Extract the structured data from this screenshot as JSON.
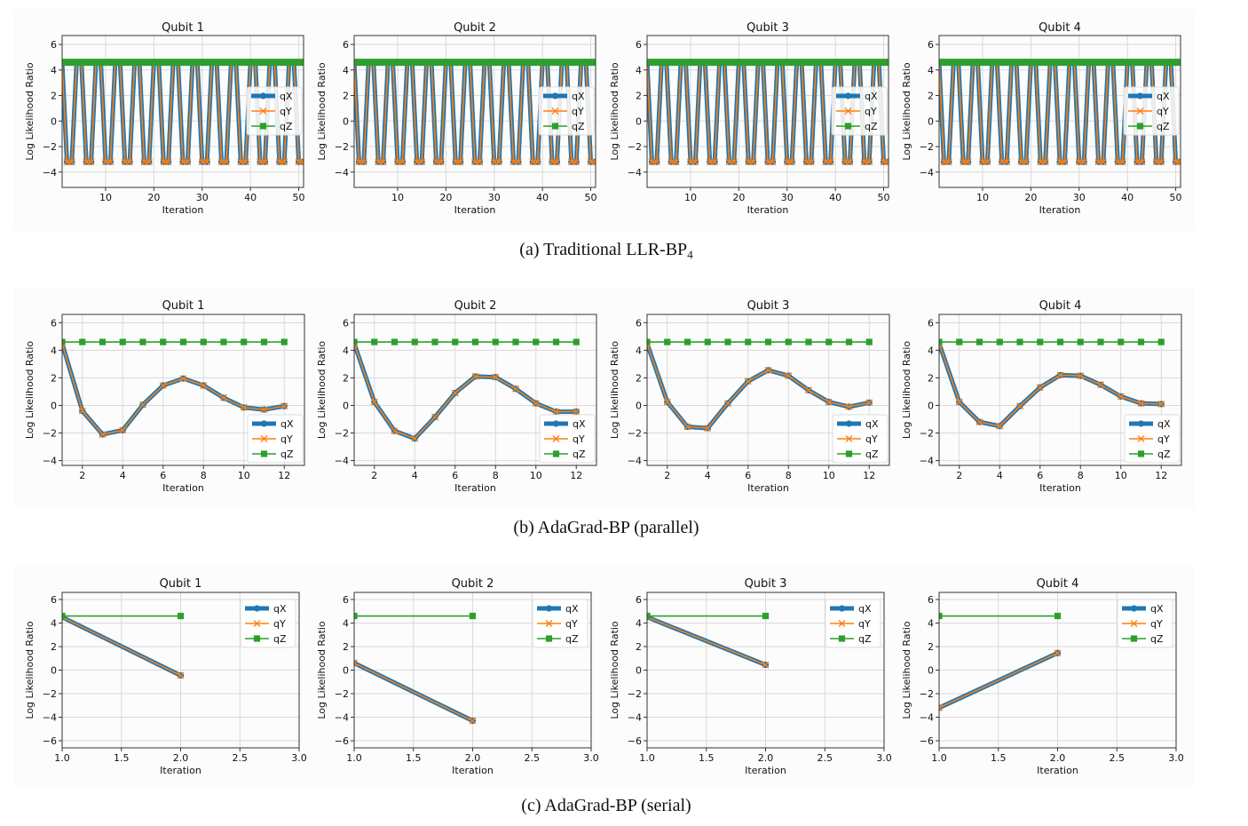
{
  "figure": {
    "panels": [
      {
        "id": "a",
        "caption_main": "(a) Traditional LLR-BP",
        "caption_sub": "4"
      },
      {
        "id": "b",
        "caption_main": "(b) AdaGrad-BP (parallel)",
        "caption_sub": ""
      },
      {
        "id": "c",
        "caption_main": "(c) AdaGrad-BP (serial)",
        "caption_sub": ""
      }
    ]
  },
  "colors": {
    "qX": "#1f77b4",
    "qY": "#ff7f0e",
    "qZ": "#2ca02c",
    "grid": "#d9d9d9",
    "axis": "#333333"
  },
  "chart_data": [
    {
      "panel": "a",
      "type": "line",
      "title": "Qubit 1",
      "xlabel": "Iteration",
      "ylabel": "Log Likelihood Ratio",
      "xlim": [
        1,
        51
      ],
      "ylim": [
        -5.2,
        6.7
      ],
      "xticks": [
        10,
        20,
        30,
        40,
        50
      ],
      "yticks": [
        -4,
        -2,
        0,
        2,
        4,
        6
      ],
      "grid": true,
      "legend": "center-right",
      "pattern": "period-4 alternation high,low,low,high",
      "x": "1..51",
      "series": [
        {
          "name": "qX",
          "high": 4.6,
          "low": -3.2,
          "low_iterations_mod4": [
            2,
            3
          ]
        },
        {
          "name": "qY",
          "high": 4.6,
          "low": -3.2,
          "low_iterations_mod4": [
            2,
            3
          ]
        },
        {
          "name": "qZ",
          "constant": 4.6
        }
      ]
    },
    {
      "panel": "a",
      "type": "line",
      "title": "Qubit 2",
      "xlabel": "Iteration",
      "ylabel": "Log Likelihood Ratio",
      "xlim": [
        1,
        51
      ],
      "ylim": [
        -5.2,
        6.7
      ],
      "xticks": [
        10,
        20,
        30,
        40,
        50
      ],
      "yticks": [
        -4,
        -2,
        0,
        2,
        4,
        6
      ],
      "grid": true,
      "legend": "center-right",
      "pattern": "period-4 alternation high,low,low,high",
      "x": "1..51",
      "series": [
        {
          "name": "qX",
          "high": 4.6,
          "low": -3.2,
          "low_iterations_mod4": [
            2,
            3
          ]
        },
        {
          "name": "qY",
          "high": 4.6,
          "low": -3.2,
          "low_iterations_mod4": [
            2,
            3
          ]
        },
        {
          "name": "qZ",
          "constant": 4.6
        }
      ]
    },
    {
      "panel": "a",
      "type": "line",
      "title": "Qubit 3",
      "xlabel": "Iteration",
      "ylabel": "Log Likelihood Ratio",
      "xlim": [
        1,
        51
      ],
      "ylim": [
        -5.2,
        6.7
      ],
      "xticks": [
        10,
        20,
        30,
        40,
        50
      ],
      "yticks": [
        -4,
        -2,
        0,
        2,
        4,
        6
      ],
      "grid": true,
      "legend": "center-right",
      "pattern": "period-4 alternation high,low,low,high",
      "x": "1..51",
      "series": [
        {
          "name": "qX",
          "high": 4.6,
          "low": -3.2,
          "low_iterations_mod4": [
            2,
            3
          ]
        },
        {
          "name": "qY",
          "high": 4.6,
          "low": -3.2,
          "low_iterations_mod4": [
            2,
            3
          ]
        },
        {
          "name": "qZ",
          "constant": 4.6
        }
      ]
    },
    {
      "panel": "a",
      "type": "line",
      "title": "Qubit 4",
      "xlabel": "Iteration",
      "ylabel": "Log Likelihood Ratio",
      "xlim": [
        1,
        51
      ],
      "ylim": [
        -5.2,
        6.7
      ],
      "xticks": [
        10,
        20,
        30,
        40,
        50
      ],
      "yticks": [
        -4,
        -2,
        0,
        2,
        4,
        6
      ],
      "grid": true,
      "legend": "center-right",
      "pattern": "period-4 alternation high,low,low,high",
      "x": "1..51",
      "series": [
        {
          "name": "qX",
          "high": 4.6,
          "low": -3.2,
          "low_iterations_mod4": [
            2,
            3
          ]
        },
        {
          "name": "qY",
          "high": 4.6,
          "low": -3.2,
          "low_iterations_mod4": [
            2,
            3
          ]
        },
        {
          "name": "qZ",
          "constant": 4.6
        }
      ]
    },
    {
      "panel": "b",
      "type": "line",
      "title": "Qubit 1",
      "xlabel": "Iteration",
      "ylabel": "Log Likelihood Ratio",
      "xlim": [
        1,
        13
      ],
      "ylim": [
        -4.35,
        6.6
      ],
      "xticks": [
        2,
        4,
        6,
        8,
        10,
        12
      ],
      "yticks": [
        -4,
        -2,
        0,
        2,
        4,
        6
      ],
      "grid": true,
      "legend": "lower-right",
      "x": [
        1,
        2,
        3,
        4,
        5,
        6,
        7,
        8,
        9,
        10,
        11,
        12
      ],
      "series": [
        {
          "name": "qX",
          "values": [
            4.5,
            -0.4,
            -2.1,
            -1.8,
            0.05,
            1.45,
            1.95,
            1.45,
            0.55,
            -0.15,
            -0.3,
            -0.05
          ]
        },
        {
          "name": "qY",
          "values": [
            4.5,
            -0.4,
            -2.1,
            -1.8,
            0.05,
            1.45,
            1.95,
            1.45,
            0.55,
            -0.15,
            -0.3,
            -0.05
          ]
        },
        {
          "name": "qZ",
          "values": [
            4.6,
            4.6,
            4.6,
            4.6,
            4.6,
            4.6,
            4.6,
            4.6,
            4.6,
            4.6,
            4.6,
            4.6
          ]
        }
      ]
    },
    {
      "panel": "b",
      "type": "line",
      "title": "Qubit 2",
      "xlabel": "Iteration",
      "ylabel": "Log Likelihood Ratio",
      "xlim": [
        1,
        13
      ],
      "ylim": [
        -4.35,
        6.6
      ],
      "xticks": [
        2,
        4,
        6,
        8,
        10,
        12
      ],
      "yticks": [
        -4,
        -2,
        0,
        2,
        4,
        6
      ],
      "grid": true,
      "legend": "lower-right",
      "x": [
        1,
        2,
        3,
        4,
        5,
        6,
        7,
        8,
        9,
        10,
        11,
        12
      ],
      "series": [
        {
          "name": "qX",
          "values": [
            4.5,
            0.25,
            -1.85,
            -2.4,
            -0.85,
            0.9,
            2.1,
            2.05,
            1.2,
            0.15,
            -0.45,
            -0.45
          ]
        },
        {
          "name": "qY",
          "values": [
            4.5,
            0.25,
            -1.85,
            -2.4,
            -0.85,
            0.9,
            2.1,
            2.05,
            1.2,
            0.15,
            -0.45,
            -0.45
          ]
        },
        {
          "name": "qZ",
          "values": [
            4.6,
            4.6,
            4.6,
            4.6,
            4.6,
            4.6,
            4.6,
            4.6,
            4.6,
            4.6,
            4.6,
            4.6
          ]
        }
      ]
    },
    {
      "panel": "b",
      "type": "line",
      "title": "Qubit 3",
      "xlabel": "Iteration",
      "ylabel": "Log Likelihood Ratio",
      "xlim": [
        1,
        13
      ],
      "ylim": [
        -4.35,
        6.6
      ],
      "xticks": [
        2,
        4,
        6,
        8,
        10,
        12
      ],
      "yticks": [
        -4,
        -2,
        0,
        2,
        4,
        6
      ],
      "grid": true,
      "legend": "lower-right",
      "x": [
        1,
        2,
        3,
        4,
        5,
        6,
        7,
        8,
        9,
        10,
        11,
        12
      ],
      "series": [
        {
          "name": "qX",
          "values": [
            4.5,
            0.25,
            -1.55,
            -1.65,
            0.15,
            1.75,
            2.55,
            2.15,
            1.1,
            0.25,
            -0.1,
            0.2
          ]
        },
        {
          "name": "qY",
          "values": [
            4.5,
            0.25,
            -1.55,
            -1.65,
            0.15,
            1.75,
            2.55,
            2.15,
            1.1,
            0.25,
            -0.1,
            0.2
          ]
        },
        {
          "name": "qZ",
          "values": [
            4.6,
            4.6,
            4.6,
            4.6,
            4.6,
            4.6,
            4.6,
            4.6,
            4.6,
            4.6,
            4.6,
            4.6
          ]
        }
      ]
    },
    {
      "panel": "b",
      "type": "line",
      "title": "Qubit 4",
      "xlabel": "Iteration",
      "ylabel": "Log Likelihood Ratio",
      "xlim": [
        1,
        13
      ],
      "ylim": [
        -4.35,
        6.6
      ],
      "xticks": [
        2,
        4,
        6,
        8,
        10,
        12
      ],
      "yticks": [
        -4,
        -2,
        0,
        2,
        4,
        6
      ],
      "grid": true,
      "legend": "lower-right",
      "x": [
        1,
        2,
        3,
        4,
        5,
        6,
        7,
        8,
        9,
        10,
        11,
        12
      ],
      "series": [
        {
          "name": "qX",
          "values": [
            4.5,
            0.25,
            -1.2,
            -1.5,
            -0.05,
            1.3,
            2.2,
            2.15,
            1.5,
            0.65,
            0.15,
            0.1
          ]
        },
        {
          "name": "qY",
          "values": [
            4.5,
            0.25,
            -1.2,
            -1.5,
            -0.05,
            1.3,
            2.2,
            2.15,
            1.5,
            0.65,
            0.15,
            0.1
          ]
        },
        {
          "name": "qZ",
          "values": [
            4.6,
            4.6,
            4.6,
            4.6,
            4.6,
            4.6,
            4.6,
            4.6,
            4.6,
            4.6,
            4.6,
            4.6
          ]
        }
      ]
    },
    {
      "panel": "c",
      "type": "line",
      "title": "Qubit 1",
      "xlabel": "Iteration",
      "ylabel": "Log Likelihood Ratio",
      "xlim": [
        1.0,
        3.0
      ],
      "ylim": [
        -6.6,
        6.6
      ],
      "xticks": [
        1.0,
        1.5,
        2.0,
        2.5,
        3.0
      ],
      "yticks": [
        -6,
        -4,
        -2,
        0,
        2,
        4,
        6
      ],
      "grid": true,
      "legend": "upper-right",
      "x": [
        1,
        2
      ],
      "series": [
        {
          "name": "qX",
          "values": [
            4.5,
            -0.45
          ]
        },
        {
          "name": "qY",
          "values": [
            4.5,
            -0.45
          ]
        },
        {
          "name": "qZ",
          "values": [
            4.6,
            4.6
          ]
        }
      ]
    },
    {
      "panel": "c",
      "type": "line",
      "title": "Qubit 2",
      "xlabel": "Iteration",
      "ylabel": "Log Likelihood Ratio",
      "xlim": [
        1.0,
        3.0
      ],
      "ylim": [
        -6.6,
        6.6
      ],
      "xticks": [
        1.0,
        1.5,
        2.0,
        2.5,
        3.0
      ],
      "yticks": [
        -6,
        -4,
        -2,
        0,
        2,
        4,
        6
      ],
      "grid": true,
      "legend": "upper-right",
      "x": [
        1,
        2
      ],
      "series": [
        {
          "name": "qX",
          "values": [
            0.6,
            -4.3
          ]
        },
        {
          "name": "qY",
          "values": [
            0.6,
            -4.3
          ]
        },
        {
          "name": "qZ",
          "values": [
            4.6,
            4.6
          ]
        }
      ]
    },
    {
      "panel": "c",
      "type": "line",
      "title": "Qubit 3",
      "xlabel": "Iteration",
      "ylabel": "Log Likelihood Ratio",
      "xlim": [
        1.0,
        3.0
      ],
      "ylim": [
        -6.6,
        6.6
      ],
      "xticks": [
        1.0,
        1.5,
        2.0,
        2.5,
        3.0
      ],
      "yticks": [
        -6,
        -4,
        -2,
        0,
        2,
        4,
        6
      ],
      "grid": true,
      "legend": "upper-right",
      "x": [
        1,
        2
      ],
      "series": [
        {
          "name": "qX",
          "values": [
            4.5,
            0.45
          ]
        },
        {
          "name": "qY",
          "values": [
            4.5,
            0.45
          ]
        },
        {
          "name": "qZ",
          "values": [
            4.6,
            4.6
          ]
        }
      ]
    },
    {
      "panel": "c",
      "type": "line",
      "title": "Qubit 4",
      "xlabel": "Iteration",
      "ylabel": "Log Likelihood Ratio",
      "xlim": [
        1.0,
        3.0
      ],
      "ylim": [
        -6.6,
        6.6
      ],
      "xticks": [
        1.0,
        1.5,
        2.0,
        2.5,
        3.0
      ],
      "yticks": [
        -6,
        -4,
        -2,
        0,
        2,
        4,
        6
      ],
      "grid": true,
      "legend": "upper-right",
      "x": [
        1,
        2
      ],
      "series": [
        {
          "name": "qX",
          "values": [
            -3.2,
            1.45
          ]
        },
        {
          "name": "qY",
          "values": [
            -3.2,
            1.45
          ]
        },
        {
          "name": "qZ",
          "values": [
            4.6,
            4.6
          ]
        }
      ]
    }
  ]
}
